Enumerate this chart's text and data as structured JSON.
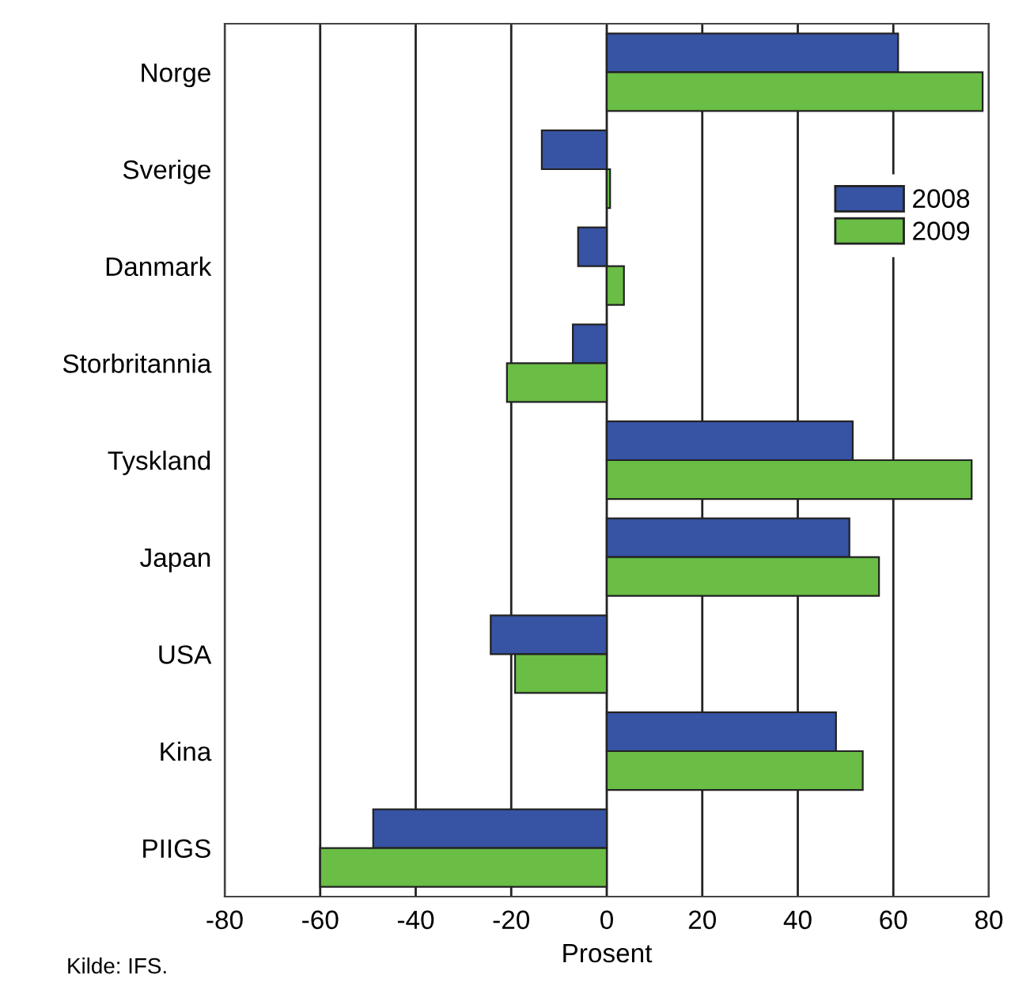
{
  "chart_data": {
    "type": "bar",
    "orientation": "horizontal",
    "xlabel": "Prosent",
    "categories": [
      "Norge",
      "Sverige",
      "Danmark",
      "Storbritannia",
      "Tyskland",
      "Japan",
      "USA",
      "Kina",
      "PIIGS"
    ],
    "series": [
      {
        "name": "2008",
        "color": "#3653a4",
        "values": [
          61,
          -13.6,
          -6,
          -7.1,
          51.5,
          50.8,
          -24.3,
          48,
          -48.9
        ]
      },
      {
        "name": "2009",
        "color": "#6abd45",
        "values": [
          78.7,
          0.7,
          3.6,
          -20.9,
          76.4,
          57,
          -19.2,
          53.6,
          -60
        ]
      }
    ],
    "xlim": [
      -80,
      80
    ],
    "xticks": [
      -80,
      -60,
      -40,
      -20,
      0,
      20,
      40,
      60,
      80
    ],
    "grid": "x",
    "legend": "right",
    "annotations": [
      "Kilde: IFS."
    ]
  }
}
